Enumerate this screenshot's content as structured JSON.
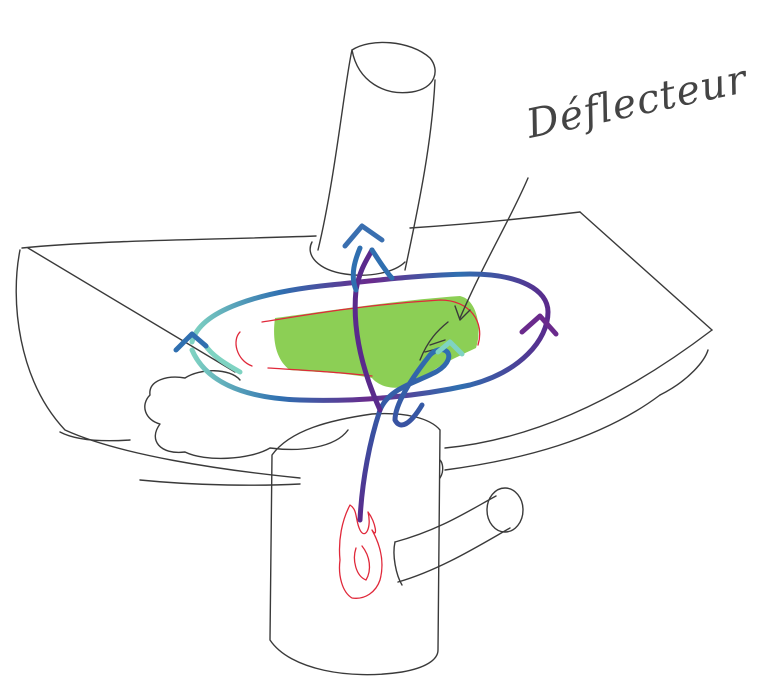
{
  "label": {
    "text": "Déflecteur"
  },
  "colors": {
    "outline": "#3a3a3a",
    "deflector_fill": "#8ccf55",
    "flame": "#e0283a",
    "flow_purple": "#5a2a8c",
    "flow_blue": "#2f6fb0",
    "flow_teal": "#7fd3c2"
  }
}
